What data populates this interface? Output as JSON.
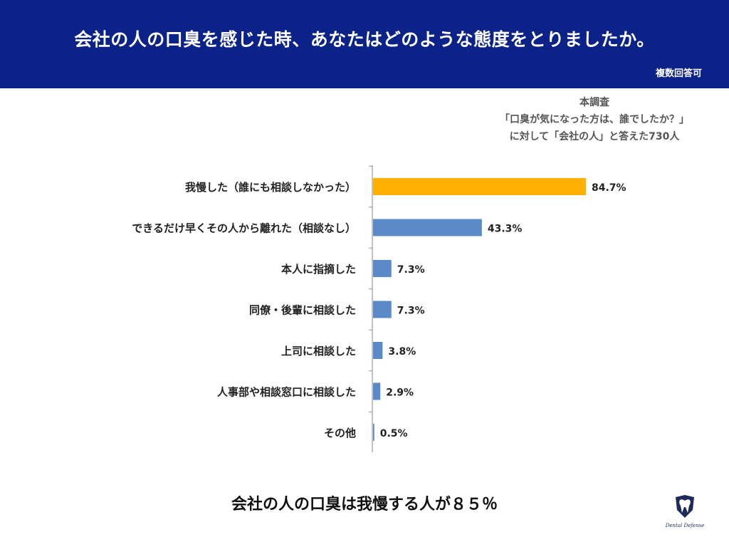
{
  "header": {
    "title": "会社の人の口臭を感じた時、あなたはどのような態度をとりましたか。",
    "note": "複数回答可"
  },
  "survey_note": {
    "line1": "本調査",
    "line2": "「口臭が気になった方は、誰でしたか？」",
    "line3": "に対して「会社の人」と答えた730人"
  },
  "chart_data": {
    "type": "bar",
    "orientation": "horizontal",
    "categories": [
      "我慢した（誰にも相談しなかった）",
      "できるだけ早くその人から離れた（相談なし）",
      "本人に指摘した",
      "同僚・後輩に相談した",
      "上司に相談した",
      "人事部や相談窓口に相談した",
      "その他"
    ],
    "values": [
      84.7,
      43.3,
      7.3,
      7.3,
      3.8,
      2.9,
      0.5
    ],
    "value_labels": [
      "84.7%",
      "43.3%",
      "7.3%",
      "7.3%",
      "3.8%",
      "2.9%",
      "0.5%"
    ],
    "unit": "%",
    "xlim": [
      0,
      100
    ],
    "highlight_index": 0,
    "colors": {
      "highlight": "#ffb000",
      "bar": "#5b8ac8",
      "axis": "#999999"
    },
    "grid": false,
    "legend": "none"
  },
  "footer": {
    "conclusion": "会社の人の口臭は我慢する人が８５％"
  },
  "logo": {
    "icon": "tooth-shield-icon",
    "text": "Dental Defense"
  }
}
